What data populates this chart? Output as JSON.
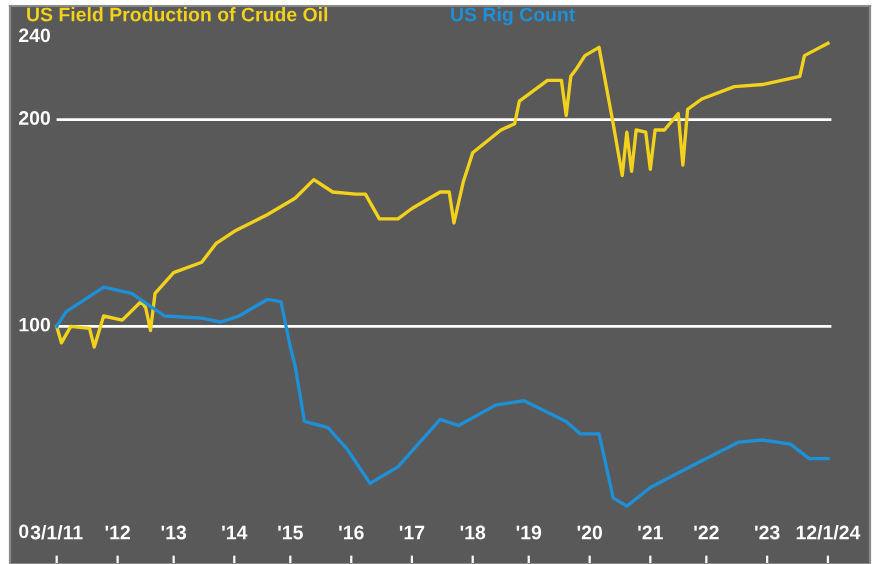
{
  "chart_data": {
    "type": "line",
    "series": [
      {
        "name": "US Field Production of Crude Oil",
        "color": "#f2d21b",
        "x": [
          "2011-03",
          "2011-04",
          "2011-06",
          "2011-10",
          "2011-11",
          "2012-01",
          "2012-05",
          "2012-09",
          "2012-10",
          "2012-11",
          "2012-12",
          "2013-04",
          "2013-10",
          "2014-01",
          "2014-05",
          "2014-12",
          "2015-06",
          "2015-10",
          "2016-02",
          "2016-07",
          "2016-09",
          "2016-12",
          "2017-04",
          "2017-07",
          "2018-01",
          "2018-03",
          "2018-04",
          "2018-06",
          "2018-08",
          "2019-02",
          "2019-05",
          "2019-06",
          "2019-12",
          "2020-03",
          "2020-04",
          "2020-05",
          "2020-06",
          "2020-08",
          "2020-11",
          "2021-02",
          "2021-04",
          "2021-05",
          "2021-06",
          "2021-07",
          "2021-09",
          "2021-10",
          "2021-11",
          "2022-01",
          "2022-04",
          "2022-05",
          "2022-06",
          "2022-09",
          "2023-04",
          "2023-10",
          "2024-06",
          "2024-07",
          "2024-12"
        ],
        "values": [
          100,
          92,
          100,
          99,
          90,
          105,
          103,
          112,
          109,
          98,
          116,
          126,
          131,
          140,
          146,
          154,
          162,
          171,
          165,
          164,
          164,
          152,
          152,
          157,
          165,
          165,
          150,
          170,
          184,
          195,
          198,
          209,
          219,
          219,
          202,
          221,
          224,
          231,
          235,
          198,
          173,
          194,
          175,
          195,
          194,
          176,
          195,
          195,
          203,
          178,
          205,
          210,
          216,
          217,
          221,
          231,
          237
        ]
      },
      {
        "name": "US Rig Count",
        "color": "#1e90d8",
        "x": [
          "2011-03",
          "2011-05",
          "2012-01",
          "2012-07",
          "2013-02",
          "2013-10",
          "2014-02",
          "2014-06",
          "2014-12",
          "2015-03",
          "2015-05",
          "2015-06",
          "2015-08",
          "2016-01",
          "2016-05",
          "2016-10",
          "2017-04",
          "2018-01",
          "2018-05",
          "2019-01",
          "2019-07",
          "2020-04",
          "2020-07",
          "2020-11",
          "2021-02",
          "2021-05",
          "2021-10",
          "2022-09",
          "2023-05",
          "2023-10",
          "2024-04",
          "2024-08",
          "2024-12"
        ],
        "values": [
          100,
          107,
          119,
          116,
          105,
          104,
          102,
          105,
          113,
          112,
          90,
          81,
          54,
          51,
          41,
          24,
          32,
          55,
          52,
          62,
          64,
          54,
          48,
          48,
          17,
          13,
          22,
          35,
          44,
          45,
          43,
          36,
          36
        ]
      }
    ],
    "xlim": [
      "2010-05",
      "2025-09"
    ],
    "xticks": [
      {
        "value": "2011-03",
        "label": "3/1/11"
      },
      {
        "value": "2012-04",
        "label": "'12"
      },
      {
        "value": "2013-04",
        "label": "'13"
      },
      {
        "value": "2014-05",
        "label": "'14"
      },
      {
        "value": "2015-05",
        "label": "'15"
      },
      {
        "value": "2016-06",
        "label": "'16"
      },
      {
        "value": "2017-07",
        "label": "'17"
      },
      {
        "value": "2018-08",
        "label": "'18"
      },
      {
        "value": "2019-08",
        "label": "'19"
      },
      {
        "value": "2020-09",
        "label": "'20"
      },
      {
        "value": "2021-10",
        "label": "'21"
      },
      {
        "value": "2022-10",
        "label": "'22"
      },
      {
        "value": "2023-11",
        "label": "'23"
      },
      {
        "value": "2024-12",
        "label": "12/1/24"
      }
    ],
    "ylim": [
      -15,
      255
    ],
    "yticks": [
      0,
      100,
      200,
      240
    ],
    "ref_lines": [
      {
        "axis": "y",
        "value": 100,
        "color": "#ffffff"
      },
      {
        "axis": "y",
        "value": 200,
        "color": "#ffffff"
      }
    ],
    "grid": false,
    "legend": false,
    "marker": "none",
    "line_style": "solid"
  }
}
